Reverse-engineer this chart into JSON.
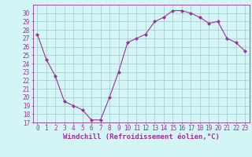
{
  "x": [
    0,
    1,
    2,
    3,
    4,
    5,
    6,
    7,
    8,
    9,
    10,
    11,
    12,
    13,
    14,
    15,
    16,
    17,
    18,
    19,
    20,
    21,
    22,
    23
  ],
  "y": [
    27.5,
    24.5,
    22.5,
    19.5,
    19.0,
    18.5,
    17.3,
    17.3,
    20.0,
    23.0,
    26.5,
    27.0,
    27.5,
    29.0,
    29.5,
    30.3,
    30.3,
    30.0,
    29.5,
    28.8,
    29.0,
    27.0,
    26.5,
    25.5
  ],
  "line_color": "#993399",
  "marker": "D",
  "marker_size": 2.0,
  "bg_color": "#d4f5f5",
  "grid_color": "#aacfcf",
  "xlabel": "Windchill (Refroidissement éolien,°C)",
  "ylim": [
    17,
    31
  ],
  "xlim_min": -0.5,
  "xlim_max": 23.5,
  "yticks": [
    17,
    18,
    19,
    20,
    21,
    22,
    23,
    24,
    25,
    26,
    27,
    28,
    29,
    30
  ],
  "xticks": [
    0,
    1,
    2,
    3,
    4,
    5,
    6,
    7,
    8,
    9,
    10,
    11,
    12,
    13,
    14,
    15,
    16,
    17,
    18,
    19,
    20,
    21,
    22,
    23
  ],
  "tick_fontsize": 5.5,
  "xlabel_fontsize": 6.5
}
